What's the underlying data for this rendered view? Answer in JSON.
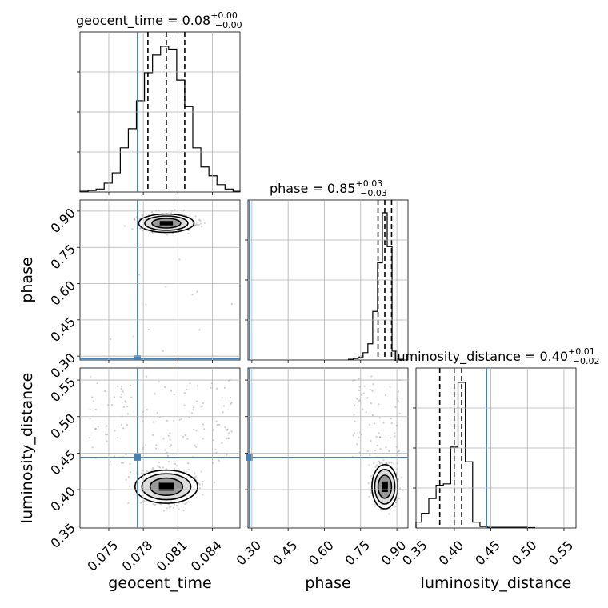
{
  "chart_data": {
    "type": "corner",
    "parameters": [
      "geocent_time",
      "phase",
      "luminosity_distance"
    ],
    "titles": {
      "geocent_time": {
        "prefix": "geocent_time = ",
        "median": "0.08",
        "plus": "+0.00",
        "minus": "−0.00"
      },
      "phase": {
        "prefix": "phase = ",
        "median": "0.85",
        "plus": "+0.03",
        "minus": "−0.03"
      },
      "luminosity_distance": {
        "prefix": "luminosity_distance = ",
        "median": "0.40",
        "plus": "+0.01",
        "minus": "−0.02"
      }
    },
    "ranges": {
      "geocent_time": [
        0.0725,
        0.0864
      ],
      "phase": [
        0.284,
        0.946
      ],
      "luminosity_distance": [
        0.3475,
        0.5665
      ]
    },
    "ticks": {
      "geocent_time": [
        "0.075",
        "0.078",
        "0.081",
        "0.084"
      ],
      "phase": [
        "0.30",
        "0.45",
        "0.60",
        "0.75",
        "0.90"
      ],
      "luminosity_distance": [
        "0.35",
        "0.40",
        "0.45",
        "0.50",
        "0.55"
      ]
    },
    "tick_values": {
      "geocent_time": [
        0.075,
        0.078,
        0.081,
        0.084
      ],
      "phase": [
        0.3,
        0.45,
        0.6,
        0.75,
        0.9
      ],
      "luminosity_distance": [
        0.35,
        0.4,
        0.45,
        0.5,
        0.55
      ]
    },
    "truths": {
      "geocent_time": 0.0775,
      "phase": 0.29,
      "luminosity_distance": 0.444
    },
    "quantiles": {
      "geocent_time": [
        0.0784,
        0.08,
        0.0816
      ],
      "phase": [
        0.822,
        0.85,
        0.878
      ],
      "luminosity_distance": [
        0.38,
        0.4,
        0.41
      ]
    },
    "histograms": {
      "geocent_time": {
        "edges": [
          0.0725,
          0.0732,
          0.0739,
          0.0746,
          0.0753,
          0.076,
          0.0767,
          0.0774,
          0.0781,
          0.0788,
          0.0795,
          0.0802,
          0.0809,
          0.0816,
          0.0823,
          0.083,
          0.0837,
          0.0844,
          0.0851,
          0.0858,
          0.0864
        ],
        "counts": [
          0.005,
          0.01,
          0.02,
          0.06,
          0.13,
          0.3,
          0.43,
          0.62,
          0.81,
          0.93,
          0.99,
          0.97,
          0.76,
          0.58,
          0.3,
          0.17,
          0.11,
          0.05,
          0.02,
          0.005
        ]
      },
      "phase": {
        "edges": [
          0.7,
          0.72,
          0.74,
          0.76,
          0.78,
          0.8,
          0.82,
          0.84,
          0.86,
          0.88,
          0.9,
          0.92
        ],
        "counts": [
          0.005,
          0.01,
          0.02,
          0.05,
          0.11,
          0.33,
          0.66,
          1.0,
          0.77,
          0.06,
          0.005
        ]
      },
      "luminosity_distance": {
        "edges": [
          0.3475,
          0.355,
          0.365,
          0.375,
          0.385,
          0.395,
          0.405,
          0.415,
          0.425,
          0.435,
          0.445,
          0.455,
          0.5,
          0.51
        ],
        "counts": [
          0.04,
          0.1,
          0.2,
          0.29,
          0.3,
          0.55,
          0.99,
          0.45,
          0.04,
          0.01,
          0.005,
          0.005,
          0.003
        ]
      }
    },
    "density_centers": {
      "geocent_time|phase": [
        0.08,
        0.85
      ],
      "geocent_time|luminosity_distance": [
        0.08,
        0.404
      ],
      "phase|luminosity_distance": [
        0.85,
        0.404
      ]
    },
    "truth_color": "#4682b4",
    "grid": true
  }
}
